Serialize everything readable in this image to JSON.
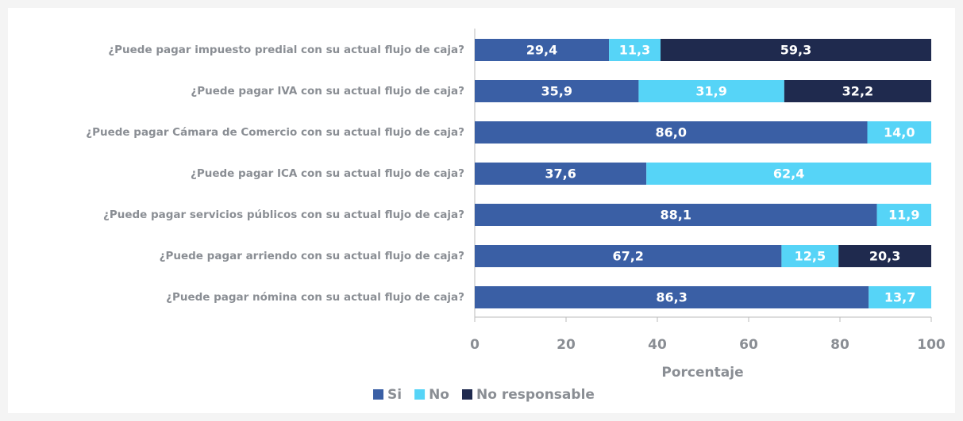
{
  "chart_data": {
    "type": "stacked-barh",
    "categories": [
      "¿Puede pagar impuesto predial con su actual flujo de caja?",
      "¿Puede pagar IVA con su actual flujo de caja?",
      "¿Puede pagar Cámara de Comercio con su actual flujo de caja?",
      "¿Puede pagar ICA con su actual flujo de caja?",
      "¿Puede pagar servicios públicos con su actual flujo de caja?",
      "¿Puede pagar arriendo con su actual flujo de caja?",
      "¿Puede pagar nómina con su actual flujo de caja?"
    ],
    "series": [
      {
        "name": "Si",
        "color": "#3a5fa5",
        "values": [
          29.4,
          35.9,
          86.0,
          37.6,
          88.1,
          67.2,
          86.3
        ],
        "value_labels": [
          "29,4",
          "35,9",
          "86,0",
          "37,6",
          "88,1",
          "67,2",
          "86,3"
        ]
      },
      {
        "name": "No",
        "color": "#56d4f7",
        "values": [
          11.3,
          31.9,
          14.0,
          62.4,
          11.9,
          12.5,
          13.7
        ],
        "value_labels": [
          "11,3",
          "31,9",
          "14,0",
          "62,4",
          "11,9",
          "12,5",
          "13,7"
        ]
      },
      {
        "name": "No responsable",
        "color": "#1f2a4e",
        "values": [
          59.3,
          32.2,
          null,
          null,
          null,
          20.3,
          null
        ],
        "value_labels": [
          "59,3",
          "32,2",
          null,
          null,
          null,
          "20,3",
          null
        ]
      }
    ],
    "xlabel": "Porcentaje",
    "xlim": [
      0,
      100
    ],
    "xticks": [
      0,
      20,
      40,
      60,
      80,
      100
    ],
    "legend": "bottom"
  }
}
